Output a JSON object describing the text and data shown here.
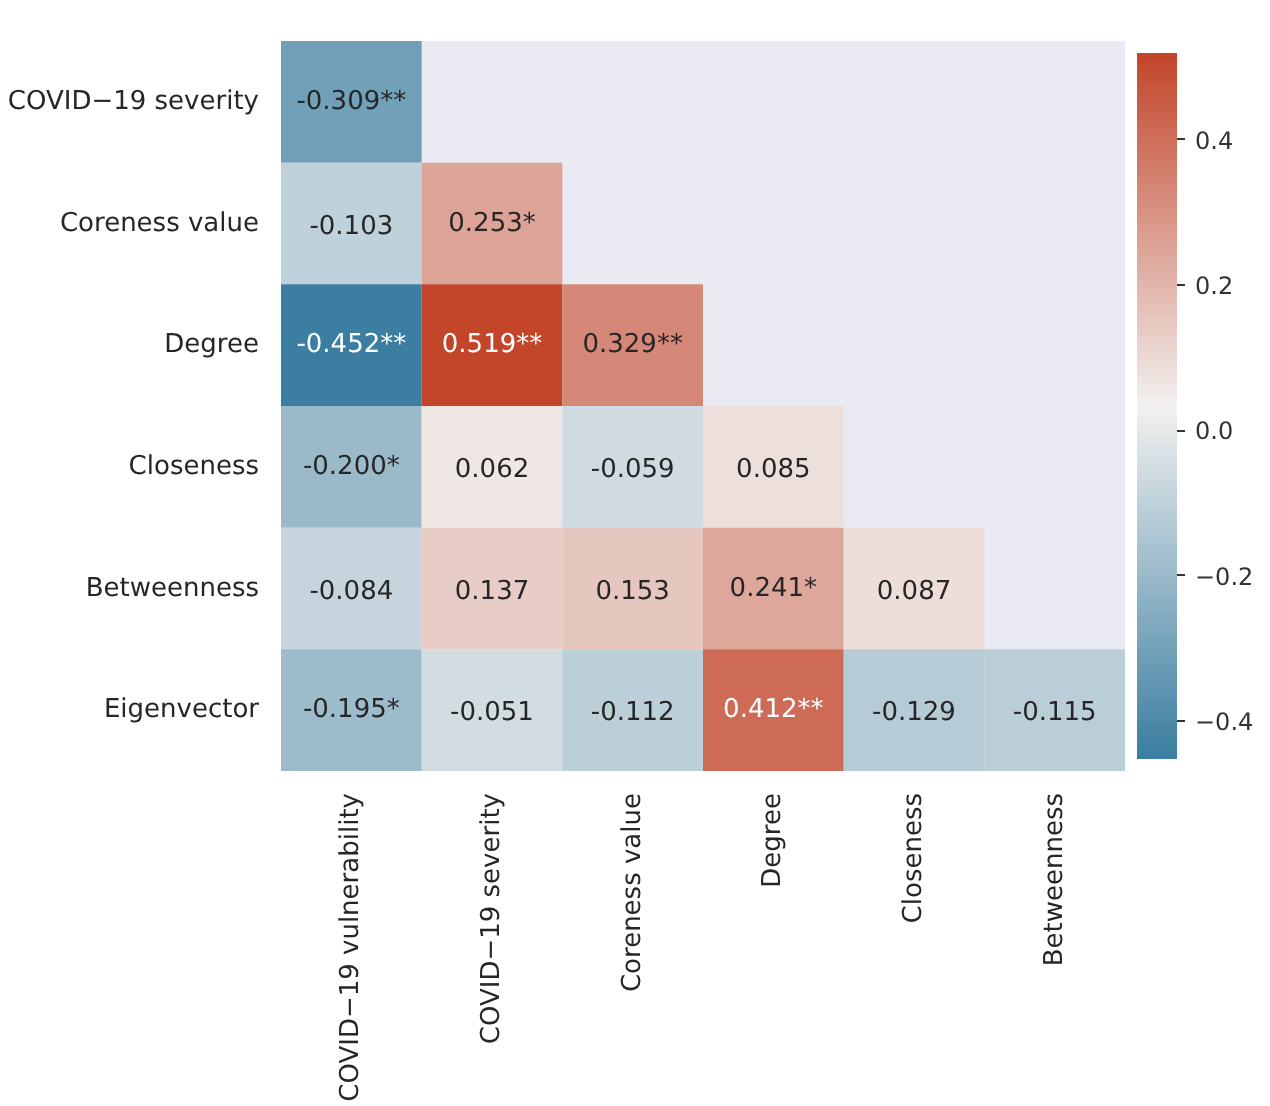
{
  "chart_data": {
    "type": "heatmap",
    "categories": [
      "COVID−19 vulnerability",
      "COVID−19 severity",
      "Coreness value",
      "Degree",
      "Closeness",
      "Betweenness"
    ],
    "y_categories": [
      "COVID−19 severity",
      "Coreness value",
      "Degree",
      "Closeness",
      "Betweenness",
      "Eigenvector"
    ],
    "cells": [
      [
        -0.309,
        null,
        null,
        null,
        null,
        null
      ],
      [
        -0.103,
        0.253,
        null,
        null,
        null,
        null
      ],
      [
        -0.452,
        0.519,
        0.329,
        null,
        null,
        null
      ],
      [
        -0.2,
        0.062,
        -0.059,
        0.085,
        null,
        null
      ],
      [
        -0.084,
        0.137,
        0.153,
        0.241,
        0.087,
        null
      ],
      [
        -0.195,
        -0.051,
        -0.112,
        0.412,
        -0.129,
        -0.115
      ]
    ],
    "cell_labels": [
      [
        "-0.309**",
        null,
        null,
        null,
        null,
        null
      ],
      [
        "-0.103",
        "0.253*",
        null,
        null,
        null,
        null
      ],
      [
        "-0.452**",
        "0.519**",
        "0.329**",
        null,
        null,
        null
      ],
      [
        "-0.200*",
        "0.062",
        "-0.059",
        "0.085",
        null,
        null
      ],
      [
        "-0.084",
        "0.137",
        "0.153",
        "0.241*",
        "0.087",
        null
      ],
      [
        "-0.195*",
        "-0.051",
        "-0.112",
        "0.412**",
        "-0.129",
        "-0.115"
      ]
    ],
    "clim": [
      -0.452,
      0.519
    ],
    "cticks": [
      {
        "value": -0.4,
        "label": "−0.4"
      },
      {
        "value": -0.2,
        "label": "−0.2"
      },
      {
        "value": 0,
        "label": "0.0"
      },
      {
        "value": 0.2,
        "label": "0.2"
      },
      {
        "value": 0.4,
        "label": "0.4"
      }
    ]
  }
}
